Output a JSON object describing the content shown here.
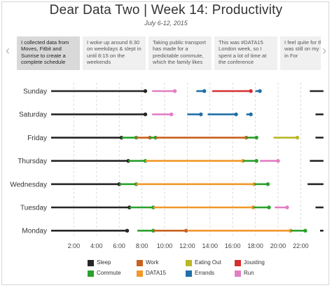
{
  "header": {
    "title": "Dear Data Two | Week 14: Productivity",
    "subtitle": "July 6-12, 2015"
  },
  "carousel": {
    "cards": [
      "I collected data from Moves, Fitbit and Sunrise to create a complete schedule",
      "I woke up around 6:30 on weekdays & slept in until 8:15 on the weekends",
      "Taking public transport has made for a predictable commute, which the family likes",
      "This was #DATA15 London week, so I spent a lot of time at the conference",
      "I feel quite for that I was still on my training in For"
    ],
    "active_index": 0,
    "prev_icon": "chevron-left-icon",
    "next_icon": "chevron-right-icon"
  },
  "chart_data": {
    "type": "timeline",
    "title": "Dear Data Two | Week 14: Productivity",
    "subtitle": "July 6-12, 2015",
    "xlabel": "",
    "ylabel": "",
    "xlim": [
      0,
      24
    ],
    "x_ticks": [
      "2:00",
      "4:00",
      "6:00",
      "8:00",
      "10:00",
      "12:00",
      "14:00",
      "16:00",
      "18:00",
      "20:00",
      "22:00"
    ],
    "x_tick_values": [
      2,
      4,
      6,
      8,
      10,
      12,
      14,
      16,
      18,
      20,
      22
    ],
    "grid": "vertical dashed",
    "legend_position": "bottom",
    "categories": [
      {
        "name": "Sleep",
        "color": "#262626"
      },
      {
        "name": "Commute",
        "color": "#2ca02c"
      },
      {
        "name": "Work",
        "color": "#c8611e"
      },
      {
        "name": "DATA15",
        "color": "#f2972a"
      },
      {
        "name": "Eating Out",
        "color": "#b8b828"
      },
      {
        "name": "Errands",
        "color": "#1f6fa8"
      },
      {
        "name": "Jousting",
        "color": "#d62f2f"
      },
      {
        "name": "Run",
        "color": "#e27ec4"
      }
    ],
    "days": [
      {
        "day": "Sunday",
        "segments": [
          {
            "cat": "Sleep",
            "start": 0,
            "end": 8.3
          },
          {
            "cat": "Run",
            "start": 8.9,
            "end": 10.9
          },
          {
            "cat": "Errands",
            "start": 12.8,
            "end": 13.5
          },
          {
            "cat": "Jousting",
            "start": 14.2,
            "end": 17.6
          },
          {
            "cat": "Errands",
            "start": 18.0,
            "end": 18.4
          },
          {
            "cat": "Sleep",
            "start": 22.8,
            "end": 24
          }
        ]
      },
      {
        "day": "Saturday",
        "segments": [
          {
            "cat": "Sleep",
            "start": 0,
            "end": 8.3
          },
          {
            "cat": "Run",
            "start": 8.9,
            "end": 10.6
          },
          {
            "cat": "Errands",
            "start": 12.0,
            "end": 13.2
          },
          {
            "cat": "Errands",
            "start": 13.8,
            "end": 16.3
          },
          {
            "cat": "Errands",
            "start": 17.2,
            "end": 17.6
          },
          {
            "cat": "Sleep",
            "start": 23.3,
            "end": 24
          }
        ]
      },
      {
        "day": "Friday",
        "segments": [
          {
            "cat": "Sleep",
            "start": 0,
            "end": 6.2
          },
          {
            "cat": "Commute",
            "start": 6.2,
            "end": 7.5
          },
          {
            "cat": "Work",
            "start": 7.5,
            "end": 8.7
          },
          {
            "cat": "Commute",
            "start": 8.7,
            "end": 9.2
          },
          {
            "cat": "Work",
            "start": 9.2,
            "end": 17.2
          },
          {
            "cat": "Commute",
            "start": 17.2,
            "end": 18.1
          },
          {
            "cat": "Eating Out",
            "start": 19.6,
            "end": 21.7
          },
          {
            "cat": "Sleep",
            "start": 23.3,
            "end": 24
          }
        ]
      },
      {
        "day": "Thursday",
        "segments": [
          {
            "cat": "Sleep",
            "start": 0,
            "end": 6.8
          },
          {
            "cat": "Commute",
            "start": 6.8,
            "end": 8.3
          },
          {
            "cat": "DATA15",
            "start": 8.3,
            "end": 16.9
          },
          {
            "cat": "Commute",
            "start": 16.9,
            "end": 18.1
          },
          {
            "cat": "Run",
            "start": 18.4,
            "end": 20.0
          },
          {
            "cat": "Sleep",
            "start": 22.8,
            "end": 24
          }
        ]
      },
      {
        "day": "Wednesday",
        "segments": [
          {
            "cat": "Sleep",
            "start": 0,
            "end": 6.0
          },
          {
            "cat": "Commute",
            "start": 6.0,
            "end": 7.5
          },
          {
            "cat": "DATA15",
            "start": 7.5,
            "end": 17.9
          },
          {
            "cat": "Commute",
            "start": 17.9,
            "end": 19.1
          },
          {
            "cat": "Sleep",
            "start": 22.6,
            "end": 24
          }
        ]
      },
      {
        "day": "Tuesday",
        "segments": [
          {
            "cat": "Sleep",
            "start": 0,
            "end": 6.9
          },
          {
            "cat": "Commute",
            "start": 6.9,
            "end": 9.0
          },
          {
            "cat": "DATA15",
            "start": 9.0,
            "end": 17.8
          },
          {
            "cat": "Commute",
            "start": 17.8,
            "end": 19.2
          },
          {
            "cat": "Run",
            "start": 19.7,
            "end": 20.8
          },
          {
            "cat": "Sleep",
            "start": 23.3,
            "end": 24
          }
        ]
      },
      {
        "day": "Monday",
        "segments": [
          {
            "cat": "Sleep",
            "start": 0,
            "end": 6.7
          },
          {
            "cat": "Commute",
            "start": 7.6,
            "end": 9.0
          },
          {
            "cat": "Work",
            "start": 9.0,
            "end": 11.9
          },
          {
            "cat": "DATA15",
            "start": 12.1,
            "end": 21.1
          },
          {
            "cat": "Commute",
            "start": 21.1,
            "end": 22.4
          },
          {
            "cat": "Sleep",
            "start": 23.7,
            "end": 24
          }
        ]
      }
    ]
  }
}
